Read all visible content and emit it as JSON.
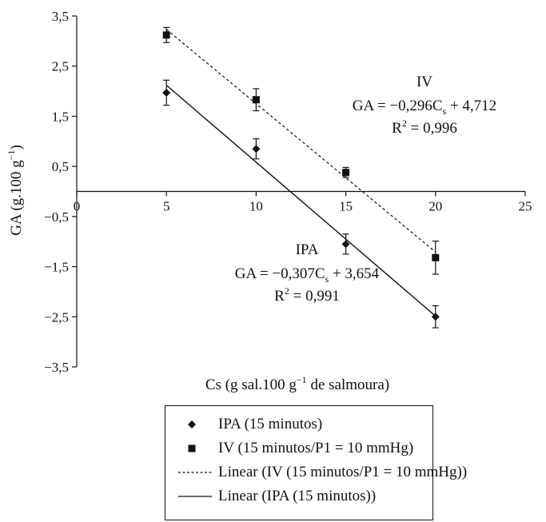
{
  "chart_data": {
    "type": "scatter",
    "x_axis": {
      "label_main": "Cs (g sal.100 g",
      "label_sup": "−1",
      "label_tail": " de salmoura)",
      "min": 0,
      "max": 25,
      "ticks": [
        0,
        5,
        10,
        15,
        20,
        25
      ],
      "tick_labels": [
        "0",
        "5",
        "10",
        "15",
        "20",
        "25"
      ]
    },
    "y_axis": {
      "label_main": "GA (g.100 g",
      "label_sup": "−1",
      "label_tail": ")",
      "min": -3.5,
      "max": 3.5,
      "ticks": [
        -3.5,
        -2.5,
        -1.5,
        -0.5,
        0.5,
        1.5,
        2.5,
        3.5
      ],
      "tick_labels": [
        "−3,5",
        "−2,5",
        "−1,5",
        "−0,5",
        "0,5",
        "1,5",
        "2,5",
        "3,5"
      ]
    },
    "series": [
      {
        "name": "IPA (15 minutos)",
        "marker": "diamond",
        "x": [
          5,
          10,
          15,
          20
        ],
        "y": [
          1.97,
          0.85,
          -1.05,
          -2.5
        ],
        "error": [
          0.25,
          0.2,
          0.2,
          0.22
        ]
      },
      {
        "name": "IV (15 minutos/P1 = 10 mmHg)",
        "marker": "square",
        "x": [
          5,
          10,
          15,
          20
        ],
        "y": [
          3.12,
          1.83,
          0.38,
          -1.32
        ],
        "error": [
          0.15,
          0.22,
          0.1,
          0.33
        ]
      }
    ],
    "trendlines": [
      {
        "name": "Linear (IV (15 minutos/P1 = 10 mmHg))",
        "style": "dashed",
        "slope": -0.296,
        "intercept": 4.712,
        "x_range": [
          5,
          20
        ],
        "label": "IV",
        "eq_prefix": "GA = −0,296C",
        "eq_sub": "s",
        "eq_suffix": " + 4,712",
        "r2_prefix": "R",
        "r2_sup": "2",
        "r2_suffix": " = 0,996"
      },
      {
        "name": "Linear (IPA (15 minutos))",
        "style": "solid",
        "slope": -0.307,
        "intercept": 3.654,
        "x_range": [
          5,
          20
        ],
        "label": "IPA",
        "eq_prefix": "GA = −0,307C",
        "eq_sub": "s",
        "eq_suffix": " + 3,654",
        "r2_prefix": "R",
        "r2_sup": "2",
        "r2_suffix": " = 0,991"
      }
    ],
    "grid": false,
    "legend_position": "bottom"
  },
  "legend": {
    "items": [
      {
        "label": "IPA (15 minutos)",
        "symbol": "diamond"
      },
      {
        "label": "IV (15 minutos/P1 = 10 mmHg)",
        "symbol": "square"
      },
      {
        "label": "Linear (IV (15 minutos/P1 = 10 mmHg))",
        "symbol": "dashed-line"
      },
      {
        "label": "Linear (IPA (15 minutos))",
        "symbol": "solid-line"
      }
    ]
  }
}
